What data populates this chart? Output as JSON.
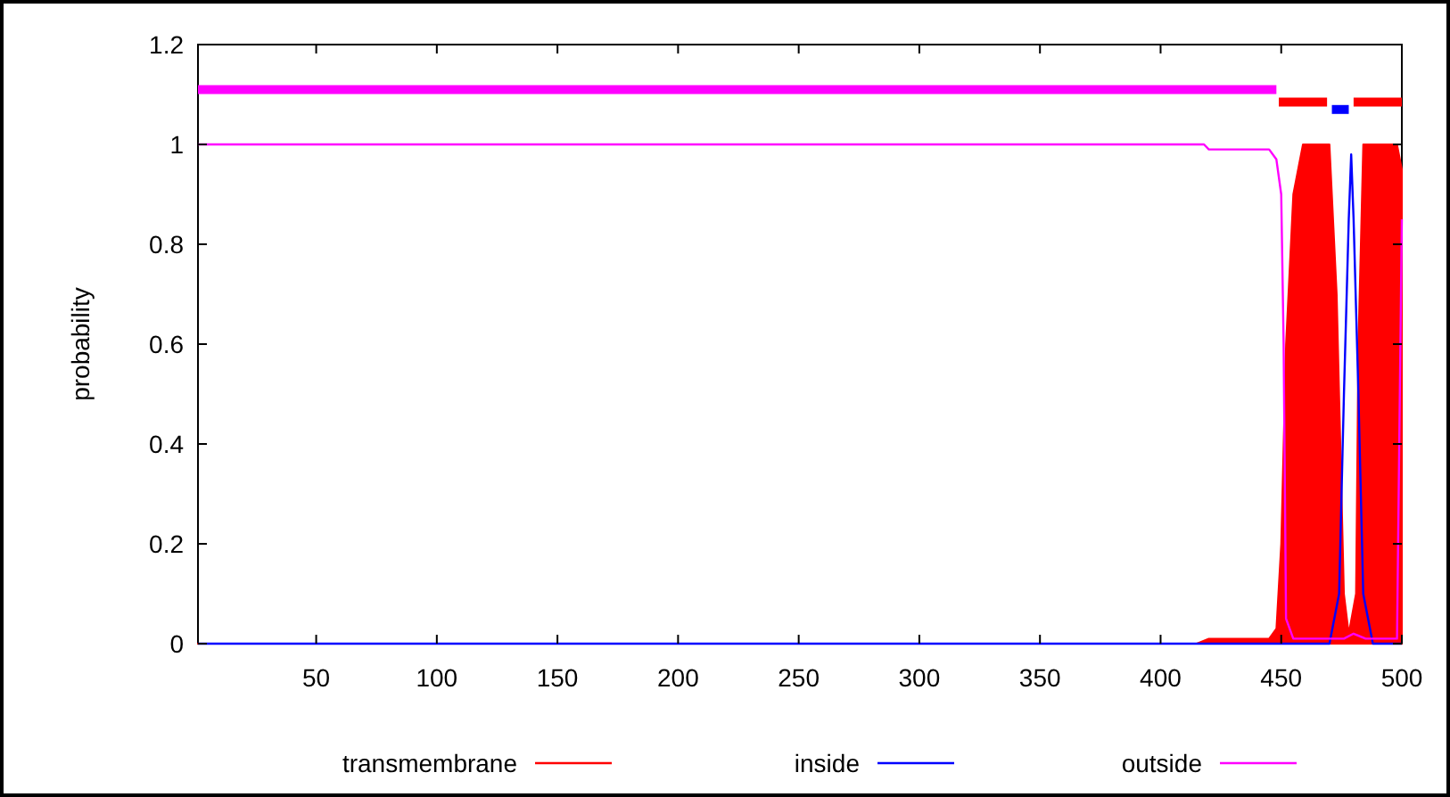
{
  "chart_data": {
    "type": "line",
    "ylabel": "probability",
    "xlim": [
      1,
      500
    ],
    "xticks": [
      50,
      100,
      150,
      200,
      250,
      300,
      350,
      400,
      450,
      500
    ],
    "ylim": [
      0,
      1.2
    ],
    "yticks": [
      0,
      0.2,
      0.4,
      0.6,
      0.8,
      1,
      1.2
    ],
    "grid": false,
    "legend": "bottom",
    "marker": "none",
    "line_style": "solid",
    "series": [
      {
        "name": "transmembrane",
        "type": "area",
        "color": "#ff0000",
        "x": [
          1,
          415,
          420,
          445,
          448,
          450,
          452,
          455,
          459,
          470,
          473,
          476,
          478,
          481,
          482,
          484,
          498,
          500
        ],
        "values": [
          0,
          0,
          0.01,
          0.01,
          0.03,
          0.2,
          0.6,
          0.9,
          1,
          1,
          0.7,
          0.1,
          0.02,
          0.1,
          0.6,
          1,
          1,
          0.95
        ]
      },
      {
        "name": "inside",
        "color": "#0000ff",
        "x": [
          1,
          470,
          474,
          476,
          478,
          479,
          480,
          482,
          484,
          488,
          500
        ],
        "values": [
          0,
          0,
          0.1,
          0.5,
          0.85,
          0.98,
          0.85,
          0.5,
          0.1,
          0,
          0
        ]
      },
      {
        "name": "outside",
        "color": "#ff00ff",
        "x": [
          1,
          418,
          420,
          445,
          448,
          450,
          451,
          452,
          455,
          470,
          476,
          480,
          485,
          498,
          500
        ],
        "values": [
          1,
          1,
          0.99,
          0.99,
          0.97,
          0.9,
          0.6,
          0.05,
          0.01,
          0.01,
          0.01,
          0.02,
          0.01,
          0.01,
          0.85
        ]
      },
      {
        "color": "#ff00ff",
        "x": [
          1,
          448
        ],
        "values": [
          1.11,
          1.11
        ]
      },
      {
        "color": "#ff0000",
        "x": [
          449,
          469
        ],
        "values": [
          1.085,
          1.085
        ]
      },
      {
        "color": "#0000ff",
        "x": [
          471,
          478
        ],
        "values": [
          1.07,
          1.07
        ]
      },
      {
        "color": "#ff0000",
        "x": [
          480,
          500
        ],
        "values": [
          1.085,
          1.085
        ]
      }
    ]
  }
}
